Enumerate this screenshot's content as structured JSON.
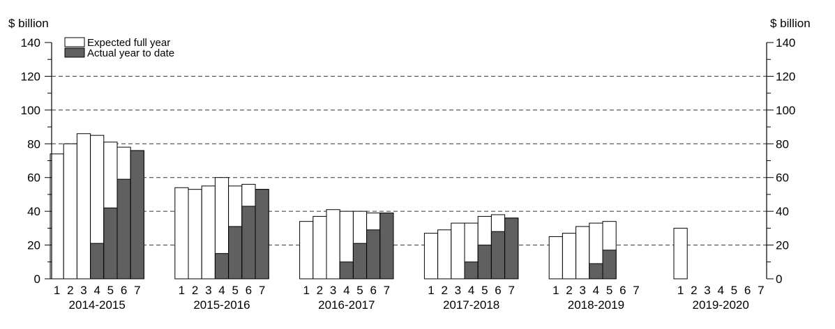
{
  "chart_data": {
    "type": "bar",
    "y_unit_left": "$ billion",
    "y_unit_right": "$ billion",
    "ylim": [
      0,
      140
    ],
    "y_ticks": [
      "0",
      "20",
      "40",
      "60",
      "80",
      "100",
      "120",
      "140"
    ],
    "y_tick_values": [
      0,
      20,
      40,
      60,
      80,
      100,
      120,
      140
    ],
    "gridlines": "dashed at 20, 40, 60, 80, 100, 120",
    "legend": {
      "placement": "top-left",
      "entries": [
        {
          "label": "Expected full year",
          "fill": "#ffffff"
        },
        {
          "label": "Actual year to date",
          "fill": "#606060"
        }
      ]
    },
    "colors": {
      "expected": "#ffffff",
      "actual": "#606060",
      "outline": "#000000",
      "grid": "#333333"
    },
    "groups": [
      {
        "label": "2014-2015",
        "sub_labels": [
          "1",
          "2",
          "3",
          "4",
          "5",
          "6",
          "7"
        ],
        "expected": [
          74,
          80,
          86,
          85,
          81,
          78,
          76
        ],
        "actual": [
          null,
          null,
          null,
          21,
          42,
          59,
          76
        ]
      },
      {
        "label": "2015-2016",
        "sub_labels": [
          "1",
          "2",
          "3",
          "4",
          "5",
          "6",
          "7"
        ],
        "expected": [
          54,
          53,
          55,
          60,
          55,
          56,
          53
        ],
        "actual": [
          null,
          null,
          null,
          15,
          31,
          43,
          53
        ]
      },
      {
        "label": "2016-2017",
        "sub_labels": [
          "1",
          "2",
          "3",
          "4",
          "5",
          "6",
          "7"
        ],
        "expected": [
          34,
          37,
          41,
          40,
          40,
          39,
          39
        ],
        "actual": [
          null,
          null,
          null,
          10,
          21,
          29,
          39
        ]
      },
      {
        "label": "2017-2018",
        "sub_labels": [
          "1",
          "2",
          "3",
          "4",
          "5",
          "6",
          "7"
        ],
        "expected": [
          27,
          29,
          33,
          33,
          37,
          38,
          36
        ],
        "actual": [
          null,
          null,
          null,
          10,
          20,
          28,
          36
        ]
      },
      {
        "label": "2018-2019",
        "sub_labels": [
          "1",
          "2",
          "3",
          "4",
          "5",
          "6",
          "7"
        ],
        "expected": [
          25,
          27,
          31,
          33,
          34,
          null,
          null
        ],
        "actual": [
          null,
          null,
          null,
          9,
          17,
          null,
          null
        ]
      },
      {
        "label": "2019-2020",
        "sub_labels": [
          "1",
          "2",
          "3",
          "4",
          "5",
          "6",
          "7"
        ],
        "expected": [
          30,
          null,
          null,
          null,
          null,
          null,
          null
        ],
        "actual": [
          null,
          null,
          null,
          null,
          null,
          null,
          null
        ]
      }
    ]
  }
}
